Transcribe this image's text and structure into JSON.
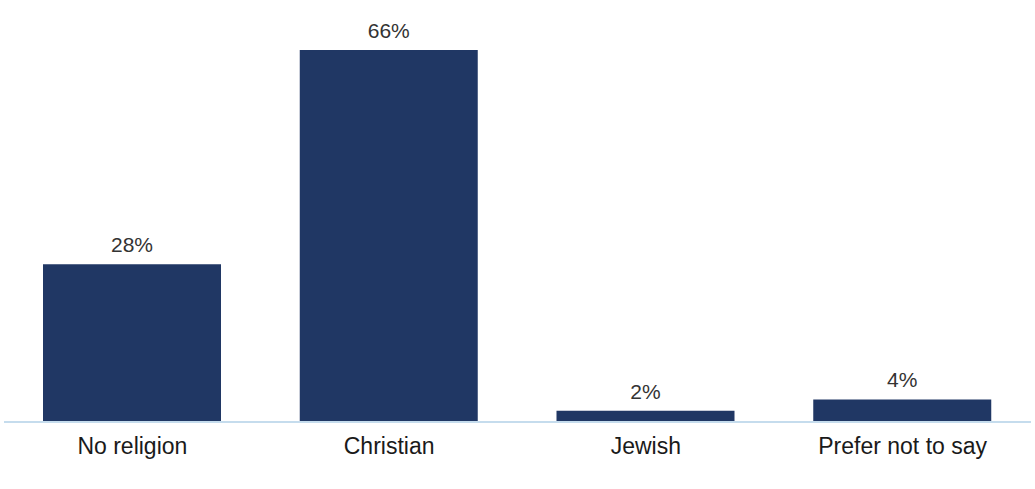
{
  "chart_data": {
    "type": "bar",
    "categories": [
      "No religion",
      "Christian",
      "Jewish",
      "Prefer not to say"
    ],
    "values": [
      28,
      66,
      2,
      4
    ],
    "value_labels": [
      "28%",
      "66%",
      "2%",
      "4%"
    ],
    "color": "#203764",
    "data_labels": true,
    "tick_labels": "x",
    "grid": false
  }
}
